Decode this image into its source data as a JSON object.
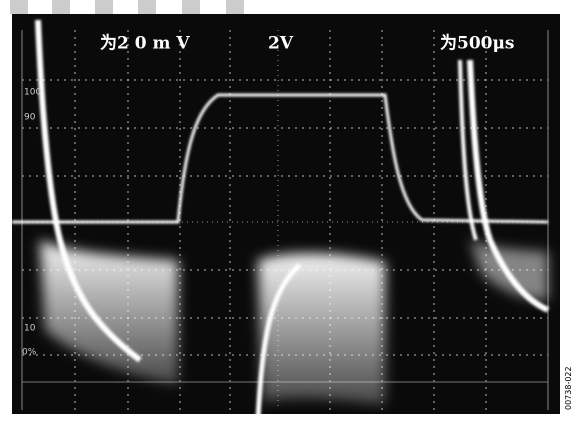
{
  "header": {
    "channel_1_scale": "为2 0 m V",
    "channel_2_scale": "2V",
    "time_scale": "为500μs"
  },
  "axis_markers": [
    "100",
    "90",
    "10",
    "0%"
  ],
  "figure_id": "00738-022"
}
